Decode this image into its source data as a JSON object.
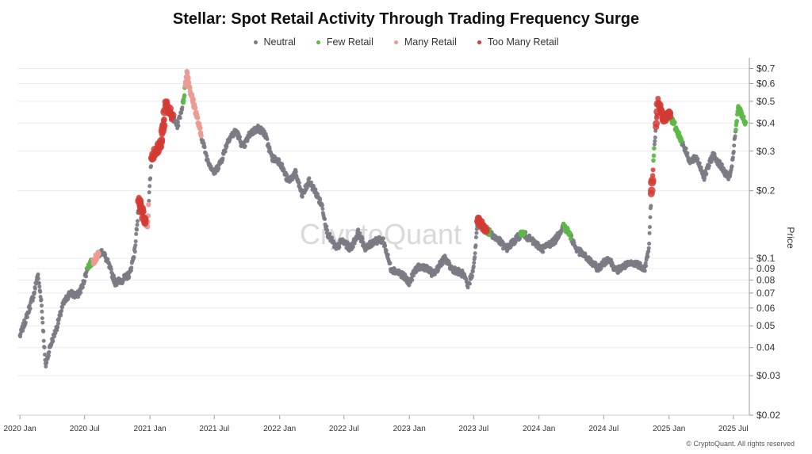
{
  "chart_data": {
    "type": "scatter",
    "title": "Stellar: Spot Retail Activity Through Trading Frequency Surge",
    "ylabel": "Price",
    "y_scale": "log",
    "ylim": [
      0.02,
      0.75
    ],
    "xlim": [
      "2019-12-25",
      "2025-08-15"
    ],
    "y_ticks": [
      {
        "value": 0.7,
        "label": "$0.7"
      },
      {
        "value": 0.6,
        "label": "$0.6"
      },
      {
        "value": 0.5,
        "label": "$0.5"
      },
      {
        "value": 0.4,
        "label": "$0.4"
      },
      {
        "value": 0.3,
        "label": "$0.3"
      },
      {
        "value": 0.2,
        "label": "$0.2"
      },
      {
        "value": 0.1,
        "label": "$0.1"
      },
      {
        "value": 0.09,
        "label": "0.09"
      },
      {
        "value": 0.08,
        "label": "0.08"
      },
      {
        "value": 0.07,
        "label": "0.07"
      },
      {
        "value": 0.06,
        "label": "0.06"
      },
      {
        "value": 0.05,
        "label": "0.05"
      },
      {
        "value": 0.04,
        "label": "0.04"
      },
      {
        "value": 0.03,
        "label": "$0.03"
      },
      {
        "value": 0.02,
        "label": "$0.02"
      }
    ],
    "x_ticks": [
      {
        "date": "2020-01-01",
        "label": "2020 Jan"
      },
      {
        "date": "2020-07-01",
        "label": "2020 Jul"
      },
      {
        "date": "2021-01-01",
        "label": "2021 Jan"
      },
      {
        "date": "2021-07-01",
        "label": "2021 Jul"
      },
      {
        "date": "2022-01-01",
        "label": "2022 Jan"
      },
      {
        "date": "2022-07-01",
        "label": "2022 Jul"
      },
      {
        "date": "2023-01-01",
        "label": "2023 Jan"
      },
      {
        "date": "2023-07-01",
        "label": "2023 Jul"
      },
      {
        "date": "2024-01-01",
        "label": "2024 Jan"
      },
      {
        "date": "2024-07-01",
        "label": "2024 Jul"
      },
      {
        "date": "2025-01-01",
        "label": "2025 Jan"
      },
      {
        "date": "2025-07-01",
        "label": "2025 Jul"
      }
    ],
    "grid": true,
    "legend_position": "top-center",
    "series": [
      {
        "name": "Neutral",
        "color": "#7b7b86"
      },
      {
        "name": "Few Retail",
        "color": "#5cb748"
      },
      {
        "name": "Many Retail",
        "color": "#ec9a94"
      },
      {
        "name": "Too Many Retail",
        "color": "#d23b34"
      }
    ],
    "price_path": [
      [
        "2020-01-01",
        0.045
      ],
      [
        "2020-01-20",
        0.055
      ],
      [
        "2020-02-10",
        0.07
      ],
      [
        "2020-02-20",
        0.085
      ],
      [
        "2020-03-01",
        0.065
      ],
      [
        "2020-03-13",
        0.033
      ],
      [
        "2020-03-25",
        0.04
      ],
      [
        "2020-04-15",
        0.05
      ],
      [
        "2020-05-01",
        0.062
      ],
      [
        "2020-05-20",
        0.07
      ],
      [
        "2020-06-10",
        0.068
      ],
      [
        "2020-06-25",
        0.075
      ],
      [
        "2020-07-10",
        0.092
      ],
      [
        "2020-08-01",
        0.1
      ],
      [
        "2020-08-20",
        0.108
      ],
      [
        "2020-09-05",
        0.095
      ],
      [
        "2020-09-25",
        0.078
      ],
      [
        "2020-10-15",
        0.08
      ],
      [
        "2020-11-05",
        0.085
      ],
      [
        "2020-11-20",
        0.11
      ],
      [
        "2020-12-01",
        0.18
      ],
      [
        "2020-12-15",
        0.15
      ],
      [
        "2020-12-25",
        0.14
      ],
      [
        "2021-01-05",
        0.28
      ],
      [
        "2021-01-15",
        0.3
      ],
      [
        "2021-02-01",
        0.32
      ],
      [
        "2021-02-15",
        0.5
      ],
      [
        "2021-03-01",
        0.43
      ],
      [
        "2021-03-20",
        0.39
      ],
      [
        "2021-04-05",
        0.5
      ],
      [
        "2021-04-15",
        0.68
      ],
      [
        "2021-04-25",
        0.55
      ],
      [
        "2021-05-10",
        0.45
      ],
      [
        "2021-05-20",
        0.38
      ],
      [
        "2021-06-10",
        0.28
      ],
      [
        "2021-07-01",
        0.24
      ],
      [
        "2021-07-20",
        0.27
      ],
      [
        "2021-08-10",
        0.34
      ],
      [
        "2021-09-01",
        0.37
      ],
      [
        "2021-09-20",
        0.31
      ],
      [
        "2021-10-10",
        0.36
      ],
      [
        "2021-11-01",
        0.38
      ],
      [
        "2021-11-20",
        0.36
      ],
      [
        "2021-12-10",
        0.28
      ],
      [
        "2022-01-01",
        0.27
      ],
      [
        "2022-01-25",
        0.22
      ],
      [
        "2022-02-15",
        0.24
      ],
      [
        "2022-03-05",
        0.19
      ],
      [
        "2022-03-25",
        0.22
      ],
      [
        "2022-04-10",
        0.2
      ],
      [
        "2022-05-01",
        0.17
      ],
      [
        "2022-05-15",
        0.13
      ],
      [
        "2022-06-10",
        0.11
      ],
      [
        "2022-06-25",
        0.12
      ],
      [
        "2022-07-20",
        0.11
      ],
      [
        "2022-08-10",
        0.13
      ],
      [
        "2022-09-01",
        0.11
      ],
      [
        "2022-09-25",
        0.12
      ],
      [
        "2022-10-20",
        0.12
      ],
      [
        "2022-11-10",
        0.09
      ],
      [
        "2022-12-10",
        0.085
      ],
      [
        "2023-01-01",
        0.078
      ],
      [
        "2023-01-20",
        0.09
      ],
      [
        "2023-02-10",
        0.092
      ],
      [
        "2023-03-10",
        0.085
      ],
      [
        "2023-04-10",
        0.1
      ],
      [
        "2023-05-01",
        0.09
      ],
      [
        "2023-06-01",
        0.085
      ],
      [
        "2023-06-15",
        0.075
      ],
      [
        "2023-07-01",
        0.09
      ],
      [
        "2023-07-13",
        0.15
      ],
      [
        "2023-07-25",
        0.14
      ],
      [
        "2023-08-15",
        0.13
      ],
      [
        "2023-09-10",
        0.12
      ],
      [
        "2023-10-01",
        0.11
      ],
      [
        "2023-10-25",
        0.12
      ],
      [
        "2023-11-15",
        0.13
      ],
      [
        "2023-12-10",
        0.12
      ],
      [
        "2024-01-10",
        0.11
      ],
      [
        "2024-02-15",
        0.12
      ],
      [
        "2024-03-10",
        0.14
      ],
      [
        "2024-03-25",
        0.13
      ],
      [
        "2024-04-15",
        0.11
      ],
      [
        "2024-05-15",
        0.1
      ],
      [
        "2024-06-15",
        0.09
      ],
      [
        "2024-07-15",
        0.1
      ],
      [
        "2024-08-05",
        0.088
      ],
      [
        "2024-09-01",
        0.093
      ],
      [
        "2024-10-01",
        0.095
      ],
      [
        "2024-10-25",
        0.09
      ],
      [
        "2024-11-05",
        0.11
      ],
      [
        "2024-11-12",
        0.19
      ],
      [
        "2024-11-20",
        0.3
      ],
      [
        "2024-12-01",
        0.5
      ],
      [
        "2024-12-15",
        0.42
      ],
      [
        "2025-01-01",
        0.44
      ],
      [
        "2025-01-20",
        0.38
      ],
      [
        "2025-02-10",
        0.32
      ],
      [
        "2025-03-01",
        0.27
      ],
      [
        "2025-03-20",
        0.28
      ],
      [
        "2025-04-10",
        0.23
      ],
      [
        "2025-05-05",
        0.29
      ],
      [
        "2025-05-25",
        0.26
      ],
      [
        "2025-06-15",
        0.23
      ],
      [
        "2025-06-25",
        0.24
      ],
      [
        "2025-07-05",
        0.34
      ],
      [
        "2025-07-15",
        0.47
      ],
      [
        "2025-08-05",
        0.4
      ]
    ],
    "highlight_ranges": [
      {
        "series": "Few Retail",
        "start": "2020-07-10",
        "end": "2020-07-25"
      },
      {
        "series": "Many Retail",
        "start": "2020-07-25",
        "end": "2020-08-10"
      },
      {
        "series": "Too Many Retail",
        "start": "2020-12-01",
        "end": "2020-12-20"
      },
      {
        "series": "Many Retail",
        "start": "2020-12-20",
        "end": "2020-12-28"
      },
      {
        "series": "Too Many Retail",
        "start": "2021-01-05",
        "end": "2021-03-05"
      },
      {
        "series": "Few Retail",
        "start": "2021-04-05",
        "end": "2021-04-25"
      },
      {
        "series": "Many Retail",
        "start": "2021-04-10",
        "end": "2021-05-25"
      },
      {
        "series": "Too Many Retail",
        "start": "2023-07-13",
        "end": "2023-08-05"
      },
      {
        "series": "Few Retail",
        "start": "2023-08-05",
        "end": "2023-08-15"
      },
      {
        "series": "Few Retail",
        "start": "2023-11-10",
        "end": "2023-11-20"
      },
      {
        "series": "Few Retail",
        "start": "2024-03-10",
        "end": "2024-03-30"
      },
      {
        "series": "Too Many Retail",
        "start": "2024-11-12",
        "end": "2024-11-18"
      },
      {
        "series": "Few Retail",
        "start": "2024-11-18",
        "end": "2024-11-20"
      },
      {
        "series": "Too Many Retail",
        "start": "2024-11-25",
        "end": "2025-01-05"
      },
      {
        "series": "Few Retail",
        "start": "2025-01-05",
        "end": "2025-02-05"
      },
      {
        "series": "Few Retail",
        "start": "2025-07-08",
        "end": "2025-08-05"
      }
    ]
  },
  "watermark": "CryptoQuant",
  "copyright": "© CryptoQuant. All rights reserved"
}
